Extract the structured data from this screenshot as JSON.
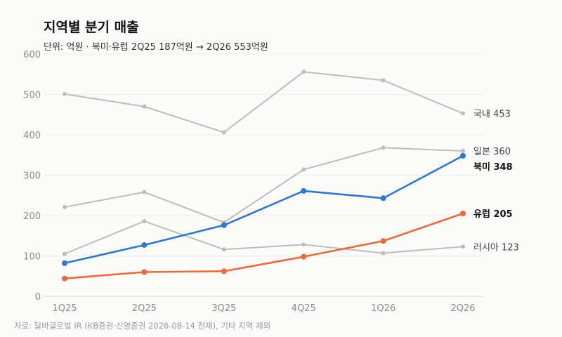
{
  "title": "지역별 분기 매출",
  "subtitle": "단위: 억원 · 북미·유럽 2Q25 187억원 → 2Q26 553억원",
  "source": "자료: 달바글로벌 IR (KB증권·신영증권 2026-08-14 전재), 기타 지역 제외",
  "chart_data": {
    "type": "line",
    "title": "지역별 분기 매출",
    "subtitle": "단위: 억원 · 북미·유럽 2Q25 187억원 → 2Q26 553억원",
    "x": [
      "1Q25",
      "2Q25",
      "3Q25",
      "4Q25",
      "1Q26",
      "2Q26"
    ],
    "ylim": [
      0,
      600
    ],
    "yticks": [
      0,
      100,
      200,
      300,
      400,
      500,
      600
    ],
    "grid": true,
    "legend": "direct labels at line ends",
    "series": [
      {
        "name": "국내",
        "values": [
          501,
          470,
          406,
          556,
          535,
          453
        ],
        "end_label": "국내 453",
        "color": "#bdbdbd",
        "highlight": false
      },
      {
        "name": "일본",
        "values": [
          221,
          258,
          183,
          314,
          368,
          360
        ],
        "end_label": "일본 360",
        "color": "#bdbdbd",
        "highlight": false
      },
      {
        "name": "러시아",
        "values": [
          105,
          186,
          116,
          128,
          107,
          123
        ],
        "end_label": "러시아 123",
        "color": "#bdbdbd",
        "highlight": false
      },
      {
        "name": "북미",
        "values": [
          82,
          127,
          176,
          261,
          243,
          348
        ],
        "end_label": "북미 348",
        "color": "#2f78d0",
        "highlight": true
      },
      {
        "name": "유럽",
        "values": [
          44,
          60,
          62,
          98,
          137,
          205
        ],
        "end_label": "유럽 205",
        "color": "#e8693a",
        "highlight": true
      }
    ]
  }
}
